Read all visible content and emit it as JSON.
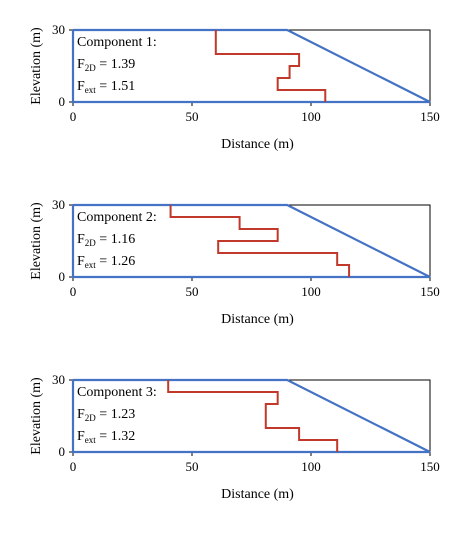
{
  "chart_data": [
    {
      "type": "line",
      "xlabel": "Distance (m)",
      "ylabel": "Elevation (m)",
      "xlim": [
        0,
        150
      ],
      "ylim": [
        0,
        30
      ],
      "xticks": [
        "0",
        "50",
        "100",
        "150"
      ],
      "yticks": [
        "0",
        "30"
      ],
      "grid": false,
      "colors": {
        "slope": "#4472c4",
        "slip": "#c0392b"
      },
      "annotation": {
        "title": "Component 1:",
        "f2d_label": "F",
        "f2d_sub": "2D",
        "f2d_value": " = 1.39",
        "fext_label": "F",
        "fext_sub": "ext",
        "fext_value": " = 1.51"
      },
      "series": [
        {
          "x": [
            0,
            90,
            150,
            0,
            0
          ],
          "y": [
            30,
            30,
            0,
            0,
            30
          ]
        },
        {
          "x": [
            60,
            60,
            95,
            95,
            91,
            91,
            86,
            86,
            106,
            106
          ],
          "y": [
            30,
            20,
            20,
            15,
            15,
            10,
            10,
            5,
            5,
            0
          ]
        }
      ]
    },
    {
      "type": "line",
      "xlabel": "Distance (m)",
      "ylabel": "Elevation (m)",
      "xlim": [
        0,
        150
      ],
      "ylim": [
        0,
        30
      ],
      "xticks": [
        "0",
        "50",
        "100",
        "150"
      ],
      "yticks": [
        "0",
        "30"
      ],
      "grid": false,
      "colors": {
        "slope": "#4472c4",
        "slip": "#c0392b"
      },
      "annotation": {
        "title": "Component 2:",
        "f2d_label": "F",
        "f2d_sub": "2D",
        "f2d_value": " = 1.16",
        "fext_label": "F",
        "fext_sub": "ext",
        "fext_value": " = 1.26"
      },
      "series": [
        {
          "x": [
            0,
            90,
            150,
            0,
            0
          ],
          "y": [
            30,
            30,
            0,
            0,
            30
          ]
        },
        {
          "x": [
            41,
            41,
            70,
            70,
            86,
            86,
            61,
            61,
            111,
            111,
            116,
            116
          ],
          "y": [
            30,
            25,
            25,
            20,
            20,
            15,
            15,
            10,
            10,
            5,
            5,
            0
          ]
        }
      ]
    },
    {
      "type": "line",
      "xlabel": "Distance (m)",
      "ylabel": "Elevation (m)",
      "xlim": [
        0,
        150
      ],
      "ylim": [
        0,
        30
      ],
      "xticks": [
        "0",
        "50",
        "100",
        "150"
      ],
      "yticks": [
        "0",
        "30"
      ],
      "grid": false,
      "colors": {
        "slope": "#4472c4",
        "slip": "#c0392b"
      },
      "annotation": {
        "title": "Component 3:",
        "f2d_label": "F",
        "f2d_sub": "2D",
        "f2d_value": " = 1.23",
        "fext_label": "F",
        "fext_sub": "ext",
        "fext_value": " = 1.32"
      },
      "series": [
        {
          "x": [
            0,
            90,
            150,
            0,
            0
          ],
          "y": [
            30,
            30,
            0,
            0,
            30
          ]
        },
        {
          "x": [
            40,
            40,
            86,
            86,
            81,
            81,
            95,
            95,
            111,
            111
          ],
          "y": [
            30,
            25,
            25,
            20,
            20,
            10,
            10,
            5,
            5,
            0
          ]
        }
      ]
    }
  ]
}
